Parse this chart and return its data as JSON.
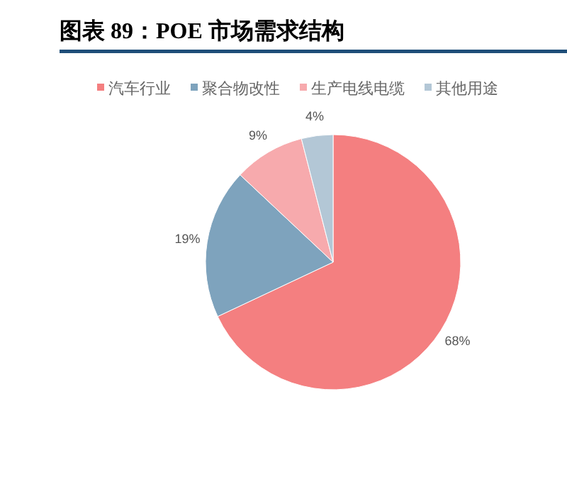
{
  "chart_data": {
    "type": "pie",
    "title": "图表 89：POE 市场需求结构",
    "categories": [
      "汽车行业",
      "聚合物改性",
      "生产电线电缆",
      "其他用途"
    ],
    "values": [
      68,
      19,
      9,
      4
    ],
    "colors": [
      "#f47f80",
      "#7ea3bd",
      "#f7aaad",
      "#b3c7d6"
    ],
    "value_labels": [
      "68%",
      "19%",
      "9%",
      "4%"
    ],
    "legend": "top"
  }
}
